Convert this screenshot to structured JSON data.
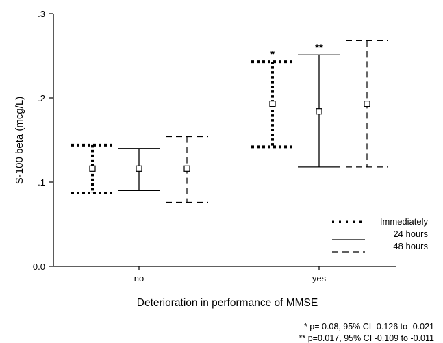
{
  "chart_data": {
    "type": "errorbar",
    "ylabel": "S-100 beta (mcg/L)",
    "xlabel": "Deterioration in performance of MMSE",
    "categories": [
      "no",
      "yes"
    ],
    "ylim": [
      0.0,
      0.3
    ],
    "yticks": [
      {
        "value": 0.0,
        "label": "0.0"
      },
      {
        "value": 0.1,
        "label": ".1"
      },
      {
        "value": 0.2,
        "label": ".2"
      },
      {
        "value": 0.3,
        "label": ".3"
      }
    ],
    "series": [
      {
        "name": "Immediately",
        "style": "dotted",
        "points": [
          {
            "category": "no",
            "mean": 0.116,
            "lower": 0.087,
            "upper": 0.144
          },
          {
            "category": "yes",
            "mean": 0.193,
            "lower": 0.142,
            "upper": 0.243,
            "annotation": "*"
          }
        ]
      },
      {
        "name": "24 hours",
        "style": "solid",
        "points": [
          {
            "category": "no",
            "mean": 0.116,
            "lower": 0.09,
            "upper": 0.14
          },
          {
            "category": "yes",
            "mean": 0.184,
            "lower": 0.118,
            "upper": 0.251,
            "annotation": "**"
          }
        ]
      },
      {
        "name": "48 hours",
        "style": "dashed",
        "points": [
          {
            "category": "no",
            "mean": 0.116,
            "lower": 0.076,
            "upper": 0.154
          },
          {
            "category": "yes",
            "mean": 0.193,
            "lower": 0.118,
            "upper": 0.268
          }
        ]
      }
    ],
    "legend": {
      "position": "bottom-right",
      "items": [
        "Immediately",
        "24 hours",
        "48 hours"
      ]
    },
    "grid": false
  },
  "footnotes": [
    "* p= 0.08, 95% CI -0.126 to -0.021",
    "** p=0.017, 95% CI -0.109 to -0.011"
  ]
}
